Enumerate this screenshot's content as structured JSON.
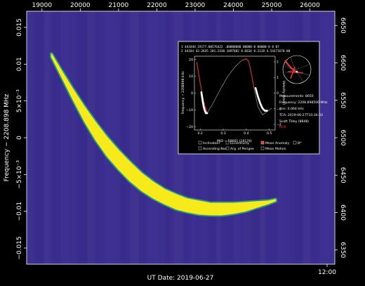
{
  "chart_data": [
    {
      "type": "heatmap",
      "title": "",
      "xlabel": "UT Date: 2019-06-27",
      "ylabel": "Frequency − 2208.898 MHz",
      "ylabel_right": "",
      "x_top_ticks": [
        "19000",
        "20000",
        "21000",
        "22000",
        "23000",
        "24000",
        "25000",
        "26000"
      ],
      "x_top_range": [
        18600,
        26650
      ],
      "x_bottom_ticks": [
        "12:00"
      ],
      "y_left_ticks": [
        {
          "value": 0.015,
          "label": "0.015"
        },
        {
          "value": 0.01,
          "label": "0.01"
        },
        {
          "value": 0.005,
          "label": "5×10⁻³"
        },
        {
          "value": 0,
          "label": "0"
        },
        {
          "value": -0.005,
          "label": "−5×10⁻³"
        },
        {
          "value": -0.01,
          "label": "−0.01"
        },
        {
          "value": -0.015,
          "label": "−0.015"
        }
      ],
      "y_left_range": [
        -0.0172,
        0.0172
      ],
      "y_right_ticks": [
        "6350",
        "6400",
        "6450",
        "6500",
        "6550",
        "6600",
        "6650"
      ],
      "y_right_range": [
        6331,
        6669
      ],
      "colormap": {
        "background": "#3b2d8f",
        "signal": "#f6ea1a",
        "edge": "#21a78a"
      },
      "series": [
        {
          "x": [
            19250,
            19500,
            19800,
            20100,
            20400,
            20700,
            21000,
            21300,
            21600,
            21900,
            22200,
            22500,
            22800,
            23100,
            23400,
            23700,
            24000,
            24300,
            24600,
            24900,
            25100
          ],
          "y": [
            0.0112,
            0.0088,
            0.006,
            0.0033,
            0.0009,
            -0.0012,
            -0.003,
            -0.0046,
            -0.006,
            -0.0071,
            -0.008,
            -0.0087,
            -0.0092,
            -0.0095,
            -0.0097,
            -0.0097,
            -0.0096,
            -0.0094,
            -0.0091,
            -0.0088,
            -0.0085
          ],
          "halfwidth": [
            0.0002,
            0.0004,
            0.0007,
            0.001,
            0.0012,
            0.0013,
            0.0013,
            0.0013,
            0.0012,
            0.0011,
            0.001,
            0.001,
            0.0009,
            0.0009,
            0.0008,
            0.0008,
            0.0007,
            0.0006,
            0.0004,
            0.0002,
            0.0001
          ]
        }
      ]
    },
    {
      "type": "line",
      "title": "",
      "xlabel": "MJD − 58661 (19178)",
      "ylabel": "Frequency − 2208898 kHz",
      "ylabel_right": "Velocity (km/s)",
      "x_ticks": [
        "0.2",
        "0.3",
        "0.4",
        "0.5"
      ],
      "x_range": [
        0.175,
        0.525
      ],
      "y_ticks": [
        "20",
        "10",
        "0",
        "−10",
        "−20"
      ],
      "y_range": [
        -22,
        22
      ],
      "y_right_ticks": [
        "2",
        "1",
        "0",
        "−1",
        "−2"
      ],
      "series": [
        {
          "name": "predicted",
          "x": [
            0.185,
            0.2,
            0.215,
            0.23,
            0.26,
            0.29,
            0.32,
            0.35,
            0.38,
            0.4,
            0.41,
            0.42,
            0.435,
            0.45,
            0.47,
            0.49,
            0.51
          ],
          "y": [
            18.5,
            6,
            -5,
            -12,
            -5,
            3,
            10,
            15.5,
            19.5,
            20.5,
            19,
            13,
            2,
            -8,
            -13,
            -11,
            -9
          ]
        },
        {
          "name": "measured",
          "x": [
            0.205,
            0.21,
            0.215,
            0.22,
            0.225,
            0.23,
            0.44,
            0.45,
            0.46,
            0.47,
            0.48,
            0.49
          ],
          "y": [
            0.5,
            -4,
            -8,
            -10.5,
            -12,
            -12,
            3,
            -2,
            -6,
            -9,
            -10.5,
            -10.5
          ]
        }
      ]
    }
  ],
  "inset": {
    "header_row1": "1  44344U   19177.00576422  .00000000  00000-0  00000-0  0   07",
    "header_row2": "2  44344   43.2645  201.2430  1097882   0.6634   0.2128   4.54371670   00",
    "info_lines": [
      "Measurements: 8650",
      "Frequency: 2208.898500 MHz",
      "rms: 0.064 kHz",
      "TCA: 2019-06-27T10:34:03",
      "Scott Tilley (8848)"
    ],
    "info_highlight": "BEN",
    "legend": [
      {
        "label": "Inclination",
        "checked": false
      },
      {
        "label": "Eccentricity",
        "checked": false
      },
      {
        "label": "Mean Anomaly",
        "checked": true
      },
      {
        "label": "B*",
        "checked": false
      },
      {
        "label": "Ascending Node",
        "checked": false
      },
      {
        "label": "Arg. of Perigee",
        "checked": false
      },
      {
        "label": "Mean Motion",
        "checked": false
      }
    ]
  }
}
